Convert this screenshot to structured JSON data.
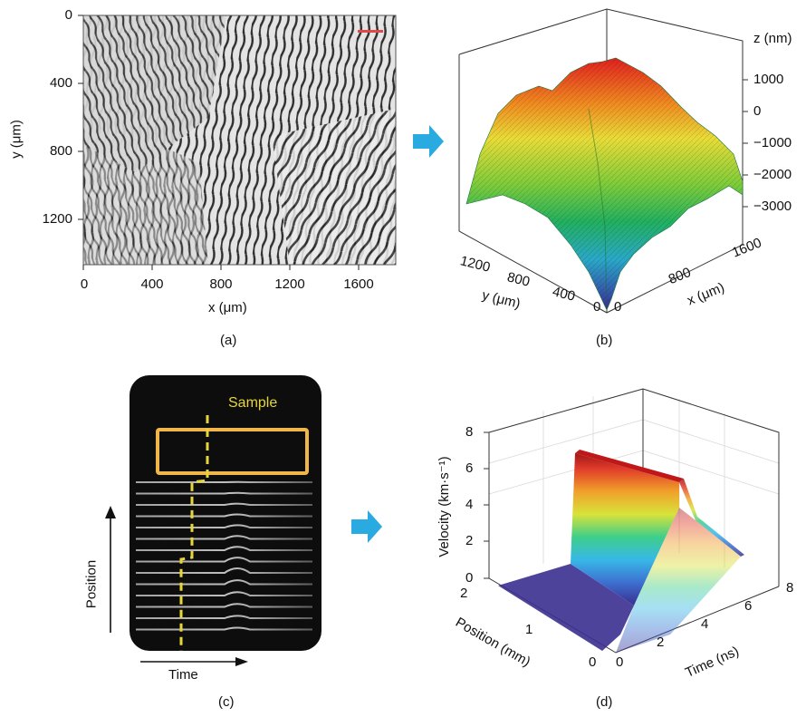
{
  "panel_a": {
    "caption": "(a)",
    "x_axis_label": "x (μm)",
    "y_axis_label": "y (μm)",
    "x_ticks": [
      "0",
      "400",
      "800",
      "1200",
      "1600"
    ],
    "y_ticks": [
      "0",
      "400",
      "800",
      "1200"
    ]
  },
  "panel_b": {
    "caption": "(b)",
    "z_axis_label": "z (nm)",
    "z_ticks": [
      "1000",
      "0",
      "−1000",
      "−2000",
      "−3000"
    ],
    "y_axis_label": "y (μm)",
    "y_ticks": [
      "1200",
      "800",
      "400",
      "0"
    ],
    "x_axis_label": "x (μm)",
    "x_ticks": [
      "0",
      "800",
      "1600"
    ]
  },
  "panel_c": {
    "caption": "(c)",
    "sample_label": "Sample",
    "position_label": "Position",
    "time_label": "Time"
  },
  "panel_d": {
    "caption": "(d)",
    "z_axis_label": "Velocity (km·s⁻¹)",
    "z_ticks": [
      "8",
      "6",
      "4",
      "2",
      "0"
    ],
    "position_axis_label": "Position (mm)",
    "position_ticks": [
      "2",
      "1",
      "0"
    ],
    "time_axis_label": "Time (ns)",
    "time_ticks": [
      "0",
      "2",
      "4",
      "6",
      "8"
    ]
  },
  "colors": {
    "arrow": "#29abe2",
    "sample_box": "#f0b64a",
    "sample_text": "#e6d63a"
  },
  "icons": [
    "right-arrow-icon",
    "up-arrow-icon",
    "right-arrow-icon"
  ]
}
